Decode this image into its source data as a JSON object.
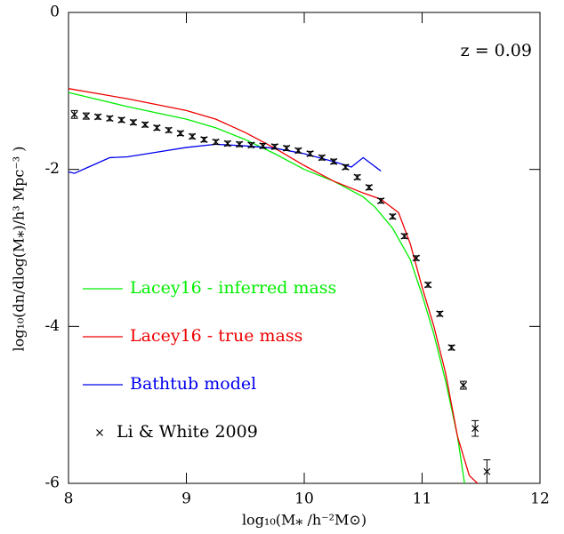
{
  "chart_data": {
    "type": "line",
    "xlabel": "log₁₀(M⁎ /h⁻²M⊙)",
    "ylabel": "log₁₀(dn/dlog(M⁎)/h³ Mpc⁻³ )",
    "annotation": "z = 0.09",
    "xlim": [
      8,
      12
    ],
    "ylim": [
      -6,
      0
    ],
    "xticks": [
      8,
      9,
      10,
      11,
      12
    ],
    "yticks": [
      -6,
      -4,
      -2,
      0
    ],
    "series": [
      {
        "name": "Lacey16 - inferred mass",
        "color": "#00ee00",
        "style": "line",
        "x": [
          8.0,
          8.5,
          9.0,
          9.25,
          9.5,
          9.75,
          10.0,
          10.25,
          10.5,
          10.6,
          10.75,
          10.9,
          11.0,
          11.1,
          11.2,
          11.3,
          11.36
        ],
        "values": [
          -1.02,
          -1.2,
          -1.36,
          -1.47,
          -1.62,
          -1.8,
          -2.0,
          -2.15,
          -2.35,
          -2.48,
          -2.75,
          -3.15,
          -3.6,
          -4.1,
          -4.7,
          -5.4,
          -6.0
        ]
      },
      {
        "name": "Lacey16 - true mass",
        "color": "#ee0000",
        "style": "line",
        "x": [
          8.0,
          8.5,
          9.0,
          9.25,
          9.5,
          9.75,
          10.0,
          10.25,
          10.5,
          10.65,
          10.8,
          10.9,
          11.0,
          11.1,
          11.2,
          11.3,
          11.4,
          11.47
        ],
        "values": [
          -0.97,
          -1.1,
          -1.25,
          -1.36,
          -1.53,
          -1.73,
          -1.95,
          -2.15,
          -2.3,
          -2.38,
          -2.55,
          -2.95,
          -3.5,
          -4.0,
          -4.6,
          -5.4,
          -5.9,
          -6.0
        ]
      },
      {
        "name": "Bathtub model",
        "color": "#0000ee",
        "style": "line",
        "x": [
          8.0,
          8.05,
          8.2,
          8.35,
          8.5,
          8.75,
          9.0,
          9.25,
          9.5,
          9.75,
          10.0,
          10.25,
          10.4,
          10.5,
          10.65
        ],
        "values": [
          -2.03,
          -2.05,
          -1.95,
          -1.85,
          -1.84,
          -1.78,
          -1.72,
          -1.68,
          -1.7,
          -1.73,
          -1.8,
          -1.9,
          -1.97,
          -1.85,
          -2.02
        ]
      },
      {
        "name": "Li & White 2009",
        "color": "#000000",
        "style": "marker",
        "x": [
          8.05,
          8.15,
          8.25,
          8.35,
          8.45,
          8.55,
          8.65,
          8.75,
          8.85,
          8.95,
          9.05,
          9.15,
          9.25,
          9.35,
          9.45,
          9.55,
          9.65,
          9.75,
          9.85,
          9.95,
          10.05,
          10.15,
          10.25,
          10.35,
          10.45,
          10.55,
          10.65,
          10.75,
          10.85,
          10.95,
          11.05,
          11.15,
          11.25,
          11.35,
          11.45,
          11.55
        ],
        "values": [
          -1.3,
          -1.32,
          -1.33,
          -1.35,
          -1.37,
          -1.4,
          -1.43,
          -1.47,
          -1.5,
          -1.54,
          -1.58,
          -1.62,
          -1.65,
          -1.67,
          -1.68,
          -1.69,
          -1.7,
          -1.71,
          -1.73,
          -1.76,
          -1.8,
          -1.85,
          -1.9,
          -1.97,
          -2.1,
          -2.23,
          -2.4,
          -2.6,
          -2.85,
          -3.13,
          -3.47,
          -3.84,
          -4.27,
          -4.75,
          -5.3,
          -5.85
        ],
        "errors": [
          0.05,
          0.04,
          0.03,
          0.03,
          0.03,
          0.03,
          0.03,
          0.03,
          0.03,
          0.03,
          0.03,
          0.03,
          0.03,
          0.03,
          0.03,
          0.03,
          0.03,
          0.03,
          0.03,
          0.03,
          0.03,
          0.03,
          0.03,
          0.03,
          0.03,
          0.03,
          0.03,
          0.03,
          0.03,
          0.03,
          0.03,
          0.03,
          0.03,
          0.05,
          0.1,
          0.15
        ]
      }
    ]
  }
}
